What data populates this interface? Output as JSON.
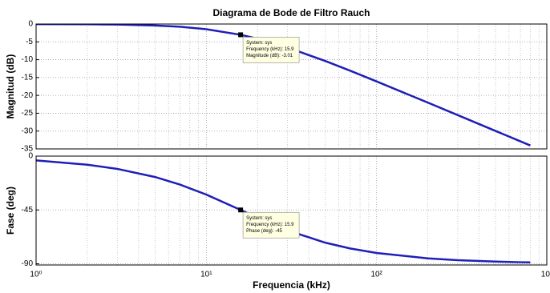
{
  "chart_data": [
    {
      "type": "line",
      "title": "Diagrama de Bode de Filtro Rauch",
      "y_label": "Magnitud (dB)",
      "log_x": true,
      "grid": true,
      "x": [
        1,
        2,
        3,
        5,
        7,
        10,
        15.9,
        20,
        30,
        50,
        70,
        100,
        200,
        300,
        500,
        700,
        800
      ],
      "series": [
        {
          "name": "sys",
          "color": "#1f1fb8",
          "values": [
            -0.017,
            -0.068,
            -0.152,
            -0.41,
            -0.77,
            -1.45,
            -3.01,
            -4.12,
            -6.59,
            -10.37,
            -13.09,
            -16.08,
            -22.02,
            -25.53,
            -29.96,
            -32.88,
            -34.03
          ]
        }
      ],
      "xlim": [
        1,
        1000
      ],
      "xticks": [
        {
          "value": 1,
          "label": "10⁰"
        },
        {
          "value": 10,
          "label": "10¹"
        },
        {
          "value": 100,
          "label": "10²"
        },
        {
          "value": 1000,
          "label": "10³"
        }
      ],
      "x_minor_ticks": [
        2,
        3,
        4,
        5,
        6,
        7,
        8,
        9,
        20,
        30,
        40,
        50,
        60,
        70,
        80,
        90,
        200,
        300,
        400,
        500,
        600,
        700,
        800,
        900
      ],
      "ylim": [
        -35,
        0
      ],
      "yticks": [
        0,
        -5,
        -10,
        -15,
        -20,
        -25,
        -30,
        -35
      ],
      "annotations": [
        {
          "x": 15.9,
          "y": -3.01,
          "lines": [
            "System: sys",
            "Frequency (kHz): 15.9",
            "Magnitude (dB): -3.01"
          ]
        }
      ]
    },
    {
      "type": "line",
      "x_label": "Frequencia  (kHz)",
      "y_label": "Fase (deg)",
      "log_x": true,
      "grid": true,
      "x": [
        1,
        2,
        3,
        5,
        7,
        10,
        15.9,
        20,
        30,
        50,
        70,
        100,
        200,
        300,
        500,
        700,
        800
      ],
      "series": [
        {
          "name": "sys",
          "color": "#1f1fb8",
          "values": [
            -3.6,
            -7.17,
            -10.68,
            -17.46,
            -23.77,
            -32.17,
            -45,
            -51.5,
            -62.08,
            -72.36,
            -77.2,
            -80.96,
            -85.45,
            -86.97,
            -88.18,
            -88.7,
            -88.86
          ]
        }
      ],
      "xlim": [
        1,
        1000
      ],
      "xticks": [
        {
          "value": 1,
          "label": "10⁰"
        },
        {
          "value": 10,
          "label": "10¹"
        },
        {
          "value": 100,
          "label": "10²"
        },
        {
          "value": 1000,
          "label": "10³"
        }
      ],
      "x_minor_ticks": [
        2,
        3,
        4,
        5,
        6,
        7,
        8,
        9,
        20,
        30,
        40,
        50,
        60,
        70,
        80,
        90,
        200,
        300,
        400,
        500,
        600,
        700,
        800,
        900
      ],
      "ylim": [
        -91,
        0
      ],
      "yticks": [
        0,
        -45,
        -90
      ],
      "annotations": [
        {
          "x": 15.9,
          "y": -45,
          "lines": [
            "System: sys",
            "Frequency (kHz): 15.9",
            "Phase (deg): -45"
          ]
        }
      ]
    }
  ]
}
